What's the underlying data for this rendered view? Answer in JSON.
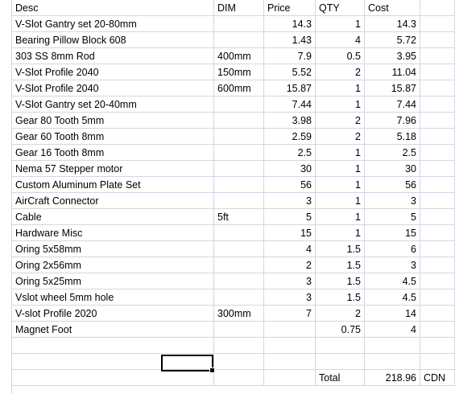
{
  "headers": {
    "desc": "Desc",
    "dim": "DIM",
    "price": "Price",
    "qty": "QTY",
    "cost": "Cost"
  },
  "rows": [
    {
      "desc": "V-Slot Gantry set 20-80mm",
      "dim": "",
      "price": "14.3",
      "qty": "1",
      "cost": "14.3"
    },
    {
      "desc": "Bearing Pillow Block 608",
      "dim": "",
      "price": "1.43",
      "qty": "4",
      "cost": "5.72"
    },
    {
      "desc": "303 SS 8mm Rod",
      "dim": "400mm",
      "price": "7.9",
      "qty": "0.5",
      "cost": "3.95"
    },
    {
      "desc": "V-Slot Profile 2040",
      "dim": "150mm",
      "price": "5.52",
      "qty": "2",
      "cost": "11.04"
    },
    {
      "desc": "V-Slot Profile 2040",
      "dim": "600mm",
      "price": "15.87",
      "qty": "1",
      "cost": "15.87"
    },
    {
      "desc": "V-Slot Gantry set 20-40mm",
      "dim": "",
      "price": "7.44",
      "qty": "1",
      "cost": "7.44"
    },
    {
      "desc": "Gear 80 Tooth 5mm",
      "dim": "",
      "price": "3.98",
      "qty": "2",
      "cost": "7.96"
    },
    {
      "desc": "Gear 60 Tooth 8mm",
      "dim": "",
      "price": "2.59",
      "qty": "2",
      "cost": "5.18"
    },
    {
      "desc": "Gear 16 Tooth 8mm",
      "dim": "",
      "price": "2.5",
      "qty": "1",
      "cost": "2.5"
    },
    {
      "desc": "Nema 57 Stepper motor",
      "dim": "",
      "price": "30",
      "qty": "1",
      "cost": "30"
    },
    {
      "desc": "Custom Aluminum Plate Set",
      "dim": "",
      "price": "56",
      "qty": "1",
      "cost": "56"
    },
    {
      "desc": "AirCraft Connector",
      "dim": "",
      "price": "3",
      "qty": "1",
      "cost": "3"
    },
    {
      "desc": "Cable",
      "dim": "5ft",
      "price": "5",
      "qty": "1",
      "cost": "5"
    },
    {
      "desc": "Hardware Misc",
      "dim": "",
      "price": "15",
      "qty": "1",
      "cost": "15"
    },
    {
      "desc": "Oring 5x58mm",
      "dim": "",
      "price": "4",
      "qty": "1.5",
      "cost": "6"
    },
    {
      "desc": "Oring 2x56mm",
      "dim": "",
      "price": "2",
      "qty": "1.5",
      "cost": "3"
    },
    {
      "desc": "Oring 5x25mm",
      "dim": "",
      "price": "3",
      "qty": "1.5",
      "cost": "4.5"
    },
    {
      "desc": "Vslot wheel 5mm hole",
      "dim": "",
      "price": "3",
      "qty": "1.5",
      "cost": "4.5"
    },
    {
      "desc": "V-slot Profile 2020",
      "dim": "300mm",
      "price": "7",
      "qty": "2",
      "cost": "14"
    },
    {
      "desc": "Magnet Foot",
      "dim": "",
      "price": "",
      "qty": "0.75",
      "cost": "4"
    }
  ],
  "total": {
    "label": "Total",
    "value": "218.96",
    "currency": "CDN"
  },
  "colors": {
    "gridline": "#d0d7e5",
    "selection": "#000000"
  }
}
